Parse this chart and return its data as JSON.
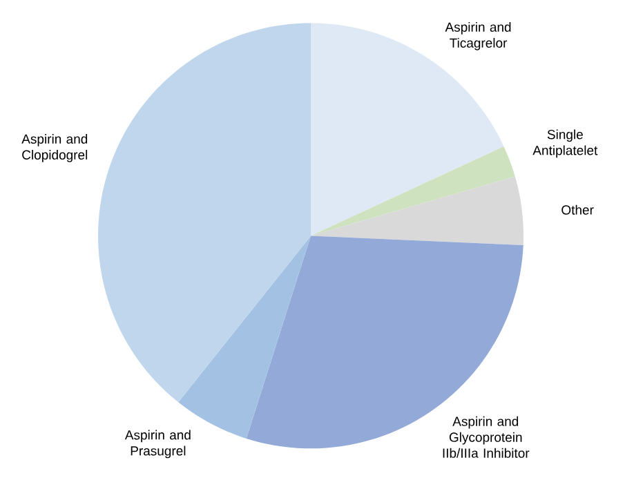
{
  "chart_data": {
    "type": "pie",
    "categories": [
      "Aspirin and Ticagrelor",
      "Single Antiplatelet",
      "Other",
      "Aspirin and Glycoprotein IIb/IIIa Inhibitor",
      "Aspirin and Prasugrel",
      "Aspirin and Clopidogrel"
    ],
    "values": [
      18.1,
      2.4,
      5.2,
      29.2,
      5.8,
      39.3
    ],
    "colors": [
      "#dfe9f5",
      "#cfe2c0",
      "#d9d9d9",
      "#93aad8",
      "#a3c2e3",
      "#c0d6ec"
    ]
  }
}
